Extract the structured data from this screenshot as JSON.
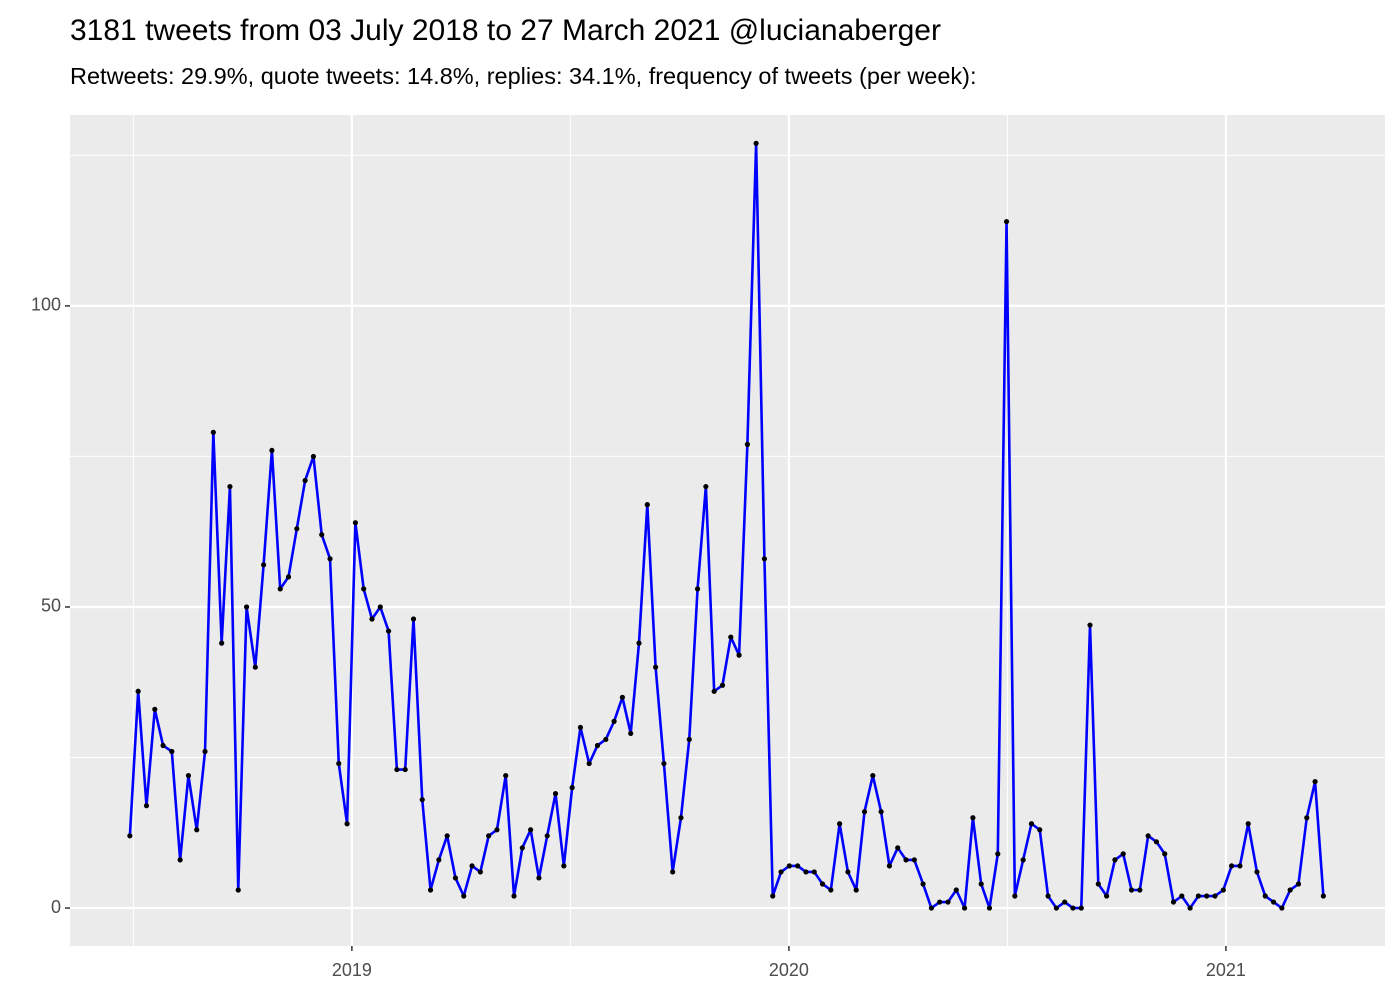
{
  "chart_data": {
    "type": "line",
    "title": "3181 tweets from 03 July 2018 to 27 March 2021 @lucianaberger",
    "subtitle": "Retweets: 29.9%, quote tweets: 14.8%, replies: 34.1%, frequency of tweets (per week):",
    "x": [
      2018.492,
      2018.511,
      2018.53,
      2018.549,
      2018.568,
      2018.588,
      2018.607,
      2018.626,
      2018.645,
      2018.664,
      2018.683,
      2018.702,
      2018.721,
      2018.74,
      2018.759,
      2018.779,
      2018.798,
      2018.817,
      2018.836,
      2018.855,
      2018.874,
      2018.893,
      2018.912,
      2018.931,
      2018.95,
      2018.97,
      2018.989,
      2019.008,
      2019.027,
      2019.046,
      2019.065,
      2019.084,
      2019.103,
      2019.122,
      2019.141,
      2019.161,
      2019.18,
      2019.199,
      2019.218,
      2019.237,
      2019.256,
      2019.275,
      2019.294,
      2019.313,
      2019.332,
      2019.352,
      2019.371,
      2019.39,
      2019.409,
      2019.428,
      2019.447,
      2019.466,
      2019.485,
      2019.504,
      2019.523,
      2019.543,
      2019.562,
      2019.581,
      2019.6,
      2019.619,
      2019.638,
      2019.657,
      2019.676,
      2019.695,
      2019.714,
      2019.734,
      2019.753,
      2019.772,
      2019.791,
      2019.81,
      2019.829,
      2019.848,
      2019.867,
      2019.886,
      2019.905,
      2019.925,
      2019.944,
      2019.963,
      2019.982,
      2020.001,
      2020.02,
      2020.039,
      2020.058,
      2020.077,
      2020.096,
      2020.116,
      2020.135,
      2020.154,
      2020.173,
      2020.192,
      2020.211,
      2020.23,
      2020.249,
      2020.268,
      2020.287,
      2020.307,
      2020.326,
      2020.345,
      2020.364,
      2020.383,
      2020.402,
      2020.421,
      2020.44,
      2020.459,
      2020.478,
      2020.498,
      2020.517,
      2020.536,
      2020.555,
      2020.574,
      2020.593,
      2020.612,
      2020.631,
      2020.65,
      2020.669,
      2020.689,
      2020.708,
      2020.727,
      2020.746,
      2020.765,
      2020.784,
      2020.803,
      2020.822,
      2020.841,
      2020.86,
      2020.88,
      2020.899,
      2020.918,
      2020.937,
      2020.956,
      2020.975,
      2020.994,
      2021.013,
      2021.032,
      2021.051,
      2021.071,
      2021.09,
      2021.109,
      2021.128,
      2021.147,
      2021.166,
      2021.185,
      2021.204,
      2021.223
    ],
    "series": [
      {
        "color": "#0000ff",
        "point_color": "#000000",
        "values": [
          12,
          36,
          17,
          33,
          27,
          26,
          8,
          22,
          13,
          26,
          79,
          44,
          70,
          3,
          50,
          40,
          57,
          76,
          53,
          55,
          63,
          71,
          75,
          62,
          58,
          24,
          14,
          64,
          53,
          48,
          50,
          46,
          23,
          23,
          48,
          18,
          3,
          8,
          12,
          5,
          2,
          7,
          6,
          12,
          13,
          22,
          2,
          10,
          13,
          5,
          12,
          19,
          7,
          20,
          30,
          24,
          27,
          28,
          31,
          35,
          29,
          44,
          67,
          40,
          24,
          6,
          15,
          28,
          53,
          70,
          36,
          37,
          45,
          42,
          77,
          127,
          58,
          2,
          6,
          7,
          7,
          6,
          6,
          4,
          3,
          14,
          6,
          3,
          16,
          22,
          16,
          7,
          10,
          8,
          8,
          4,
          0,
          1,
          1,
          3,
          0,
          15,
          4,
          0,
          9,
          114,
          2,
          8,
          14,
          13,
          2,
          0,
          1,
          0,
          0,
          47,
          4,
          2,
          8,
          9,
          3,
          3,
          12,
          11,
          9,
          1,
          2,
          0,
          2,
          2,
          2,
          3,
          7,
          7,
          14,
          6,
          2,
          1,
          0,
          3,
          4,
          15,
          21,
          2
        ]
      }
    ],
    "xlim": [
      2018.355,
      2021.364
    ],
    "xticks": [
      2019,
      2020,
      2021
    ],
    "x_minor_ticks": [
      2018.5,
      2019.5,
      2020.5
    ],
    "ylim": [
      -6.3,
      131.7
    ],
    "yticks": [
      0,
      50,
      100
    ],
    "y_minor_ticks": [
      25,
      75,
      125
    ],
    "grid": true
  }
}
